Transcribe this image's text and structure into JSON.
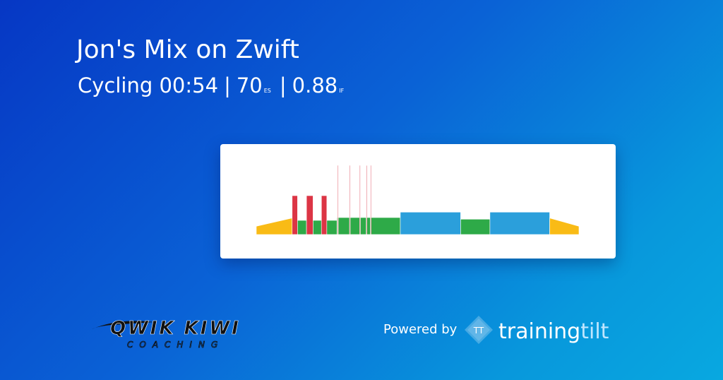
{
  "header": {
    "title": "Jon's Mix on Zwift",
    "subtitle": {
      "sport": "Cycling",
      "duration": "00:54",
      "separator": "|",
      "es": 70,
      "es_label": "ES",
      "if": 0.88,
      "if_label": "IF"
    }
  },
  "workout": {
    "xlim": [
      0,
      54
    ],
    "ylim": [
      0,
      300
    ],
    "segments": [
      {
        "start": 0,
        "end": 6,
        "power_start": 35,
        "power_end": 70,
        "color": "#f9bb16"
      },
      {
        "start": 6,
        "end": 6.9,
        "power": 165,
        "color": "#dc3545"
      },
      {
        "start": 6.9,
        "end": 8.4,
        "power": 60,
        "color": "#2eaa48"
      },
      {
        "start": 8.4,
        "end": 9.5,
        "power": 165,
        "color": "#dc3545"
      },
      {
        "start": 9.5,
        "end": 10.9,
        "power": 60,
        "color": "#2eaa48"
      },
      {
        "start": 10.9,
        "end": 11.8,
        "power": 165,
        "color": "#dc3545"
      },
      {
        "start": 11.8,
        "end": 13.5,
        "power": 60,
        "color": "#2eaa48"
      },
      {
        "start": 13.5,
        "end": 24.1,
        "power": 72,
        "color": "#2eaa48"
      },
      {
        "start": 13.6,
        "end": 13.7,
        "power": 294,
        "color": "#dc3545"
      },
      {
        "start": 15.6,
        "end": 15.7,
        "power": 294,
        "color": "#dc3545"
      },
      {
        "start": 17.3,
        "end": 17.4,
        "power": 294,
        "color": "#dc3545"
      },
      {
        "start": 18.4,
        "end": 18.5,
        "power": 294,
        "color": "#dc3545"
      },
      {
        "start": 19.1,
        "end": 19.2,
        "power": 294,
        "color": "#dc3545"
      },
      {
        "start": 24.1,
        "end": 34.2,
        "power": 95,
        "color": "#2b9fdb"
      },
      {
        "start": 34.2,
        "end": 39.1,
        "power": 65,
        "color": "#2eaa48"
      },
      {
        "start": 39.1,
        "end": 49.1,
        "power": 95,
        "color": "#2b9fdb"
      },
      {
        "start": 49.1,
        "end": 54,
        "power_start": 70,
        "power_end": 35,
        "color": "#f9bb16"
      }
    ]
  },
  "footer": {
    "coach_name": "QWIK KIWI",
    "coach_sub": "COACHING",
    "powered_by": "Powered by",
    "brand_icon": "TT",
    "brand_first": "training",
    "brand_second": "tilt"
  }
}
